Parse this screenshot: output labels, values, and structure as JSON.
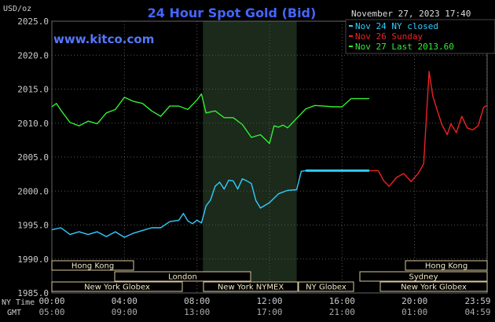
{
  "title": "24 Hour Spot Gold (Bid)",
  "unit_label": "USD/oz",
  "timestamp": "November 27, 2023 17:40",
  "watermark": "www.kitco.com",
  "legend": [
    {
      "label": "Nov 24 NY closed",
      "color": "#33ccff"
    },
    {
      "label": "Nov 26 Sunday",
      "color": "#ee2222"
    },
    {
      "label": "Nov 27 Last 2013.60",
      "color": "#33ee33"
    }
  ],
  "axis_row_labels": {
    "ny": "NY Time",
    "gmt": "GMT"
  },
  "markets": [
    {
      "label": "Hong Kong",
      "side": "left"
    },
    {
      "label": "London",
      "side": "left"
    },
    {
      "label": "New York Globex",
      "side": "left"
    },
    {
      "label": "New York NYMEX",
      "side": "left"
    },
    {
      "label": "NY Globex",
      "side": "left"
    },
    {
      "label": "Hong Kong",
      "side": "right"
    },
    {
      "label": "Sydney",
      "side": "right"
    },
    {
      "label": "New York Globex",
      "side": "right"
    }
  ],
  "colors": {
    "background": "#000000",
    "grid": "#555555",
    "shade": "#1b2a1b",
    "axis_text": "#cccccc",
    "title": "#4466ff",
    "watermark": "#5577ff"
  },
  "chart_data": {
    "type": "line",
    "title": "24 Hour Spot Gold (Bid)",
    "ylabel": "USD/oz",
    "ylim": [
      1985.0,
      2025.0
    ],
    "y_ticks": [
      "2025.0",
      "2020.0",
      "2015.0",
      "2010.0",
      "2005.0",
      "2000.0",
      "1995.0",
      "1990.0",
      "1985.0"
    ],
    "xlim": [
      0,
      24
    ],
    "x_ticks_ny": [
      "00:00",
      "04:00",
      "08:00",
      "12:00",
      "16:00",
      "20:00",
      "23:59"
    ],
    "x_ticks_gmt": [
      "05:00",
      "09:00",
      "13:00",
      "17:00",
      "21:00",
      "01:00",
      "04:59"
    ],
    "x_tick_hours": [
      0,
      4,
      8,
      12,
      16,
      20,
      23.98
    ],
    "shaded_hours": [
      8.33,
      13.5
    ],
    "grid": true,
    "series": [
      {
        "name": "Nov 24 NY closed",
        "color": "#33ccff",
        "x": [
          0,
          0.5,
          1,
          1.5,
          2,
          2.5,
          3,
          3.5,
          4,
          4.5,
          5,
          5.5,
          6,
          6.5,
          7,
          7.25,
          7.5,
          7.75,
          8,
          8.25,
          8.5,
          8.75,
          9,
          9.25,
          9.5,
          9.75,
          10,
          10.25,
          10.5,
          10.75,
          11,
          11.25,
          11.5,
          12,
          12.5,
          13,
          13.5,
          13.75,
          14,
          14.5,
          15,
          15.5,
          16,
          16.5,
          17,
          17.5
        ],
        "y": [
          1994.3,
          1994.6,
          1993.6,
          1994.0,
          1993.6,
          1994.0,
          1993.3,
          1994.0,
          1993.2,
          1993.8,
          1994.2,
          1994.6,
          1994.6,
          1995.5,
          1995.7,
          1996.7,
          1995.6,
          1995.2,
          1995.7,
          1995.3,
          1997.8,
          1998.7,
          2000.7,
          2001.3,
          2000.3,
          2001.6,
          2001.5,
          2000.3,
          2001.8,
          2001.5,
          2001.1,
          1998.6,
          1997.5,
          1998.3,
          1999.6,
          2000.1,
          2000.2,
          2002.9,
          2003.0,
          2003.0,
          2003.0,
          2003.0,
          2003.0,
          2003.0,
          2003.0,
          2003.0
        ]
      },
      {
        "name": "Nov 26 Sunday",
        "color": "#ee2222",
        "x": [
          17.5,
          18,
          18.3,
          18.6,
          19,
          19.4,
          19.8,
          20.2,
          20.5,
          20.8,
          21.0,
          21.2,
          21.5,
          21.8,
          22.0,
          22.3,
          22.6,
          22.9,
          23.2,
          23.5,
          23.8,
          23.98
        ],
        "y": [
          2003.0,
          2003.0,
          2001.5,
          2000.7,
          2002.0,
          2002.6,
          2001.4,
          2002.6,
          2004.0,
          2017.6,
          2014.0,
          2012.3,
          2009.8,
          2008.3,
          2009.9,
          2008.6,
          2011.0,
          2009.3,
          2009.0,
          2009.6,
          2012.3,
          2012.6
        ]
      },
      {
        "name": "Nov 27 Last 2013.60",
        "color": "#33ee33",
        "x": [
          0,
          0.25,
          0.5,
          1,
          1.5,
          2,
          2.5,
          3,
          3.5,
          4,
          4.5,
          5,
          5.5,
          6,
          6.5,
          7,
          7.5,
          8,
          8.25,
          8.5,
          9,
          9.5,
          10,
          10.5,
          11,
          11.5,
          12,
          12.25,
          12.5,
          12.75,
          13,
          13.5,
          14,
          14.5,
          15,
          15.5,
          16,
          16.5,
          17,
          17.5
        ],
        "y": [
          2012.4,
          2012.9,
          2011.9,
          2010.1,
          2009.6,
          2010.3,
          2009.9,
          2011.5,
          2012.0,
          2013.8,
          2013.2,
          2012.9,
          2011.8,
          2011.0,
          2012.5,
          2012.5,
          2012.0,
          2013.4,
          2014.3,
          2011.5,
          2011.8,
          2010.8,
          2010.8,
          2009.8,
          2007.9,
          2008.3,
          2007.0,
          2009.6,
          2009.4,
          2009.7,
          2009.3,
          2010.7,
          2012.1,
          2012.6,
          2012.5,
          2012.4,
          2012.4,
          2013.6,
          2013.6,
          2013.6
        ]
      }
    ]
  }
}
